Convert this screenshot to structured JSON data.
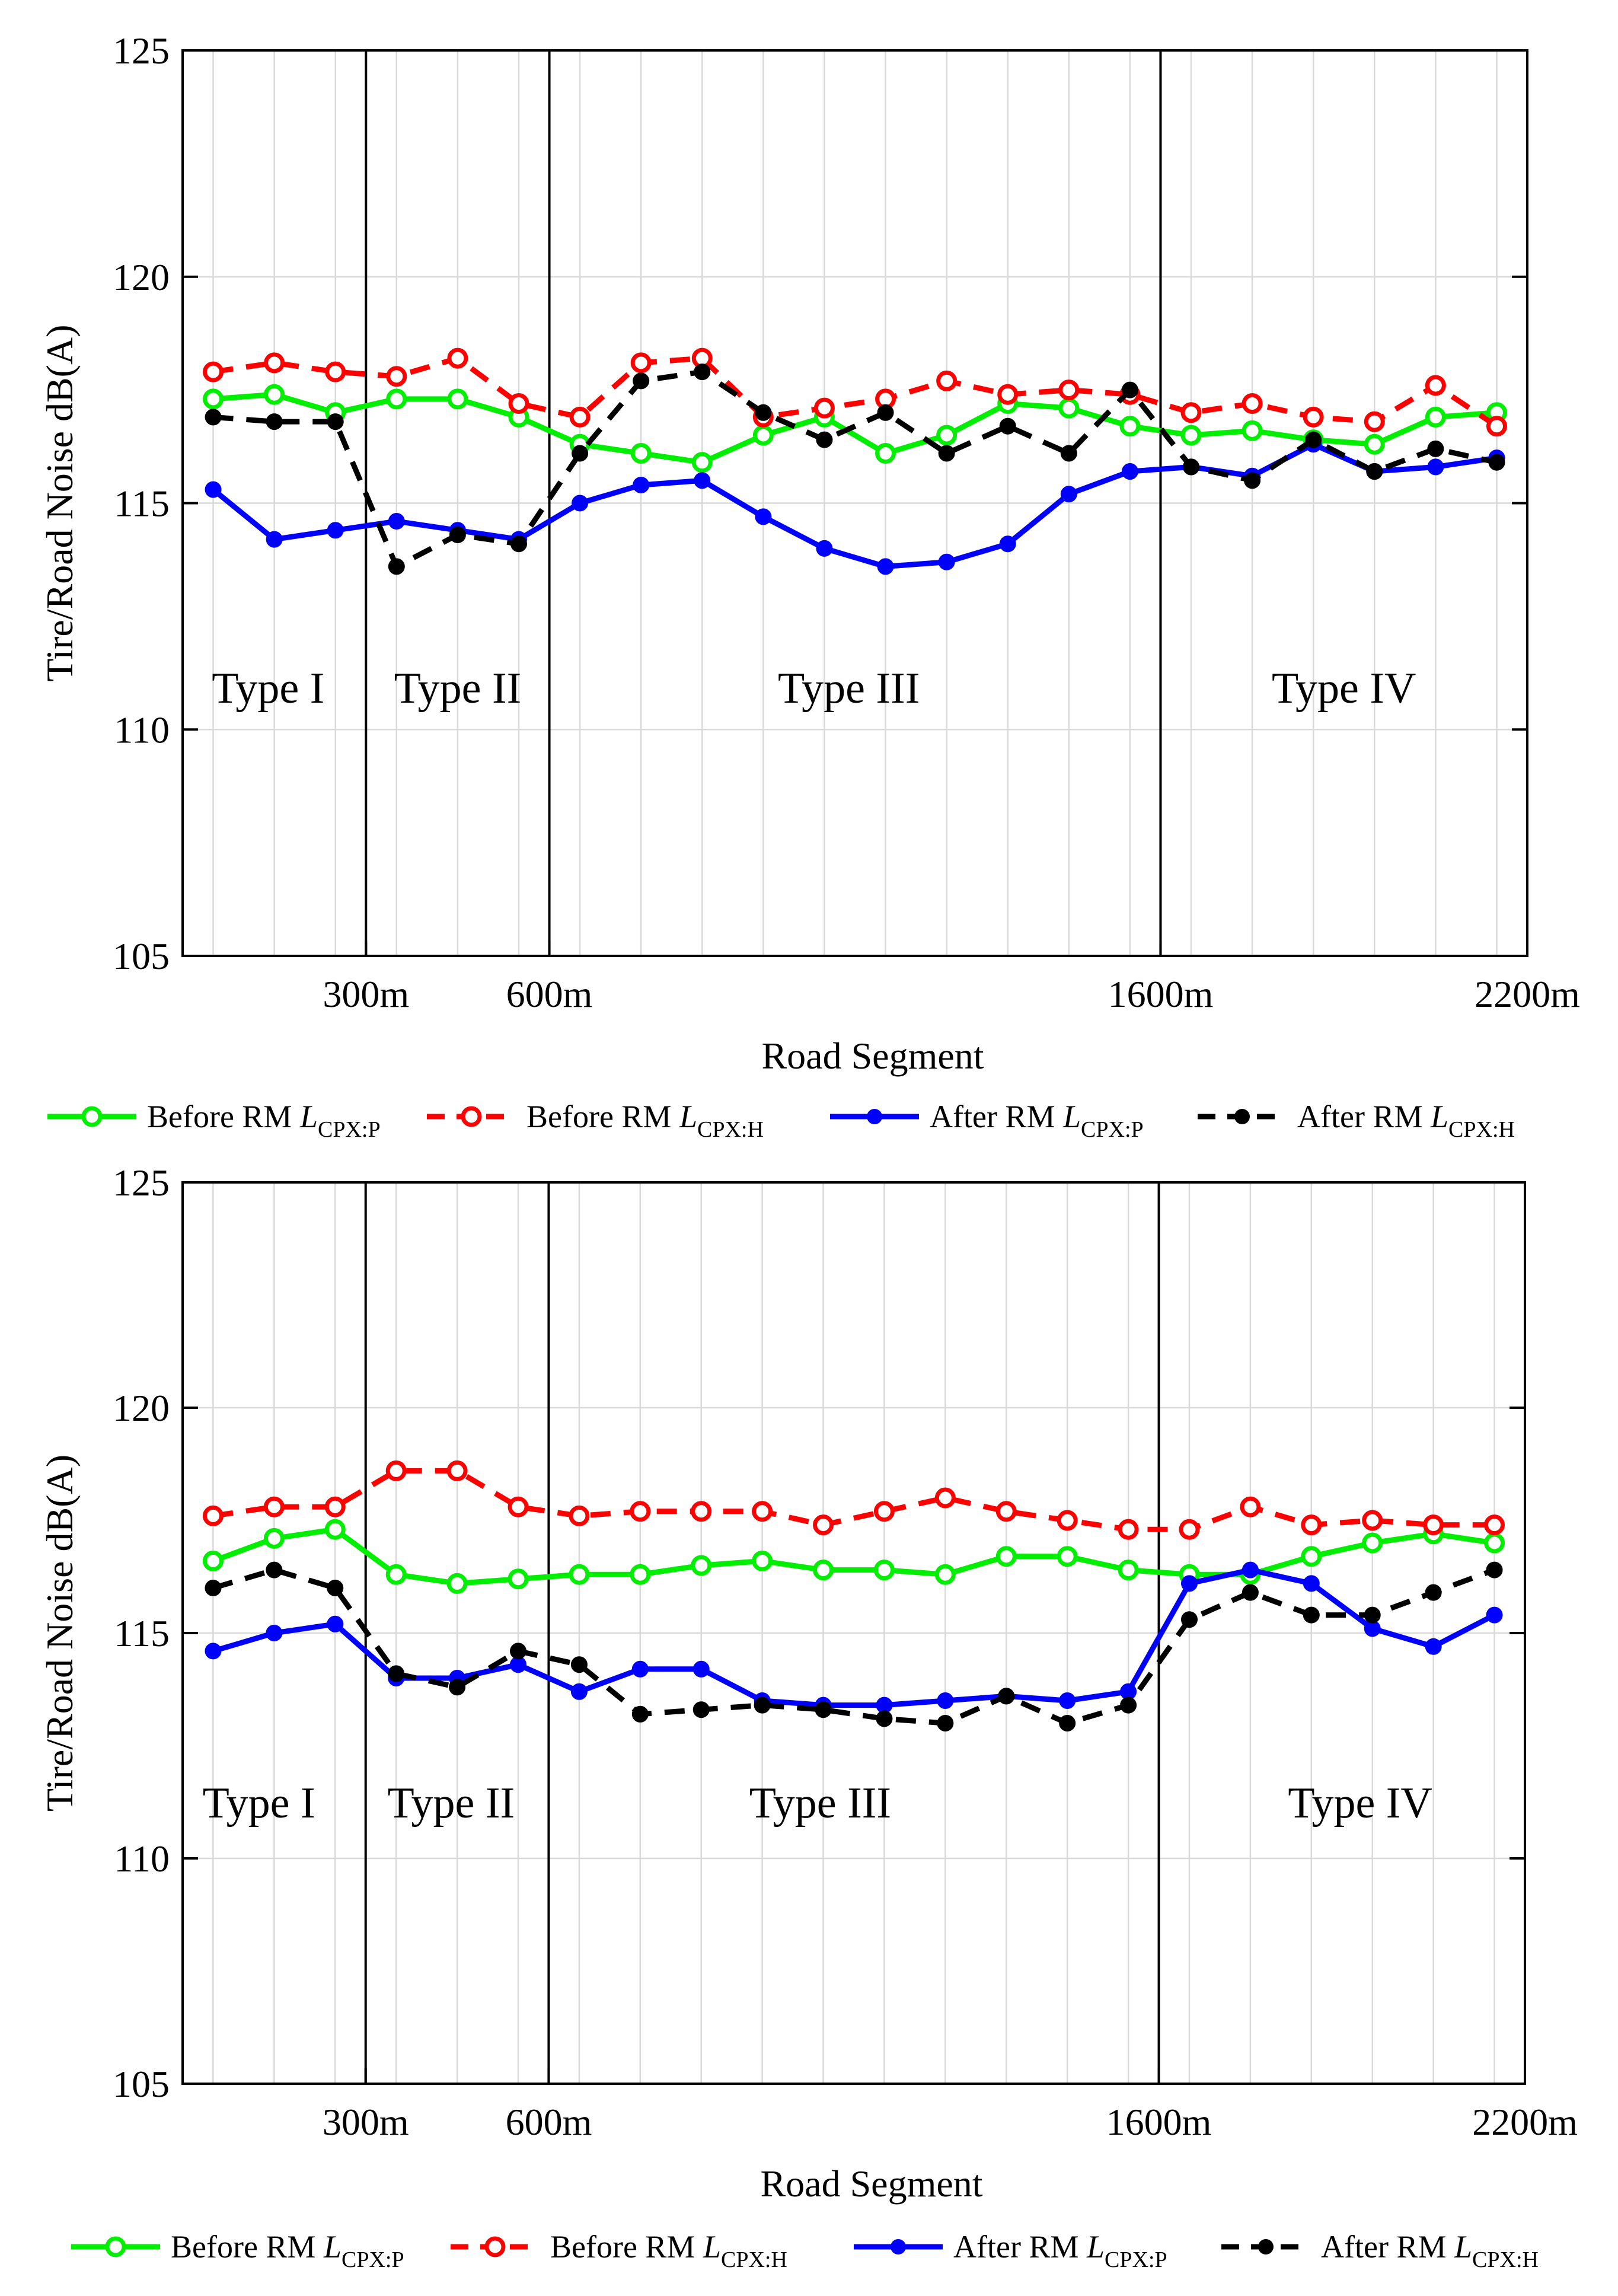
{
  "chart_data": [
    {
      "type": "line",
      "xlabel": "Road Segment",
      "ylabel": "Tire/Road Noise dB(A)",
      "ylim": [
        105,
        125
      ],
      "y_ticks": [
        "105",
        "110",
        "115",
        "120",
        "125"
      ],
      "x_ticks": [
        "300m",
        "600m",
        "1600m",
        "2200m"
      ],
      "x_tick_positions": [
        300,
        600,
        1600,
        2200
      ],
      "x_range": [
        0,
        2200
      ],
      "segment_positions": [
        50,
        150,
        250,
        350,
        450,
        550,
        650,
        750,
        850,
        950,
        1050,
        1150,
        1250,
        1350,
        1450,
        1550,
        1650,
        1750,
        1850,
        1950,
        2050,
        2150
      ],
      "boundaries": [
        300,
        600,
        1600
      ],
      "regions": [
        {
          "label": "Type I",
          "center": 140
        },
        {
          "label": "Type II",
          "center": 450
        },
        {
          "label": "Type III",
          "center": 1090
        },
        {
          "label": "Type IV",
          "center": 1900
        }
      ],
      "grid": true,
      "series": [
        {
          "name": "Before RM",
          "sym": "L",
          "sub": "CPX:P",
          "color": "#00ee00",
          "dash": false,
          "marker": "open",
          "values": [
            117.3,
            117.4,
            117.0,
            117.3,
            117.3,
            116.9,
            116.3,
            116.1,
            115.9,
            116.5,
            116.9,
            116.1,
            116.5,
            117.2,
            117.1,
            116.7,
            116.5,
            116.6,
            116.4,
            116.3,
            116.9,
            117.0
          ]
        },
        {
          "name": "Before RM",
          "sym": "L",
          "sub": "CPX:H",
          "color": "#ff0000",
          "dash": true,
          "marker": "open",
          "values": [
            117.9,
            118.1,
            117.9,
            117.8,
            118.2,
            117.2,
            116.9,
            118.1,
            118.2,
            116.9,
            117.1,
            117.3,
            117.7,
            117.4,
            117.5,
            117.4,
            117.0,
            117.2,
            116.9,
            116.8,
            117.6,
            116.7
          ]
        },
        {
          "name": "After RM",
          "sym": "L",
          "sub": "CPX:P",
          "color": "#0000ff",
          "dash": false,
          "marker": "filled",
          "values": [
            115.3,
            114.2,
            114.4,
            114.6,
            114.4,
            114.2,
            115.0,
            115.4,
            115.5,
            114.7,
            114.0,
            113.6,
            113.7,
            114.1,
            115.2,
            115.7,
            115.8,
            115.6,
            116.3,
            115.7,
            115.8,
            116.0
          ]
        },
        {
          "name": "After RM",
          "sym": "L",
          "sub": "CPX:H",
          "color": "#000000",
          "dash": true,
          "marker": "filled",
          "values": [
            116.9,
            116.8,
            116.8,
            113.6,
            114.3,
            114.1,
            116.1,
            117.7,
            117.9,
            117.0,
            116.4,
            117.0,
            116.1,
            116.7,
            116.1,
            117.5,
            115.8,
            115.5,
            116.4,
            115.7,
            116.2,
            115.9
          ]
        }
      ]
    },
    {
      "type": "line",
      "xlabel": "Road Segment",
      "ylabel": "Tire/Road Noise dB(A)",
      "ylim": [
        105,
        125
      ],
      "y_ticks": [
        "105",
        "110",
        "115",
        "120",
        "125"
      ],
      "x_ticks": [
        "300m",
        "600m",
        "1600m",
        "2200m"
      ],
      "x_tick_positions": [
        300,
        600,
        1600,
        2200
      ],
      "x_range": [
        0,
        2200
      ],
      "segment_positions": [
        50,
        150,
        250,
        350,
        450,
        550,
        650,
        750,
        850,
        950,
        1050,
        1150,
        1250,
        1350,
        1450,
        1550,
        1650,
        1750,
        1850,
        1950,
        2050,
        2150
      ],
      "boundaries": [
        300,
        600,
        1600
      ],
      "regions": [
        {
          "label": "Type I",
          "center": 125
        },
        {
          "label": "Type II",
          "center": 440
        },
        {
          "label": "Type III",
          "center": 1045
        },
        {
          "label": "Type IV",
          "center": 1930
        }
      ],
      "grid": true,
      "series": [
        {
          "name": "Before RM",
          "sym": "L",
          "sub": "CPX:P",
          "color": "#00ee00",
          "dash": false,
          "marker": "open",
          "values": [
            116.6,
            117.1,
            117.3,
            116.3,
            116.1,
            116.2,
            116.3,
            116.3,
            116.5,
            116.6,
            116.4,
            116.4,
            116.3,
            116.7,
            116.7,
            116.4,
            116.3,
            116.3,
            116.7,
            117.0,
            117.2,
            117.0
          ]
        },
        {
          "name": "Before RM",
          "sym": "L",
          "sub": "CPX:H",
          "color": "#ff0000",
          "dash": true,
          "marker": "open",
          "values": [
            117.6,
            117.8,
            117.8,
            118.6,
            118.6,
            117.8,
            117.6,
            117.7,
            117.7,
            117.7,
            117.4,
            117.7,
            118.0,
            117.7,
            117.5,
            117.3,
            117.3,
            117.8,
            117.4,
            117.5,
            117.4,
            117.4
          ]
        },
        {
          "name": "After RM",
          "sym": "L",
          "sub": "CPX:P",
          "color": "#0000ff",
          "dash": false,
          "marker": "filled",
          "values": [
            114.6,
            115.0,
            115.2,
            114.0,
            114.0,
            114.3,
            113.7,
            114.2,
            114.2,
            113.5,
            113.4,
            113.4,
            113.5,
            113.6,
            113.5,
            113.7,
            116.1,
            116.4,
            116.1,
            115.1,
            114.7,
            115.4
          ]
        },
        {
          "name": "After RM",
          "sym": "L",
          "sub": "CPX:H",
          "color": "#000000",
          "dash": true,
          "marker": "filled",
          "values": [
            116.0,
            116.4,
            116.0,
            114.1,
            113.8,
            114.6,
            114.3,
            113.2,
            113.3,
            113.4,
            113.3,
            113.1,
            113.0,
            113.6,
            113.0,
            113.4,
            115.3,
            115.9,
            115.4,
            115.4,
            115.9,
            116.4
          ]
        }
      ]
    }
  ]
}
